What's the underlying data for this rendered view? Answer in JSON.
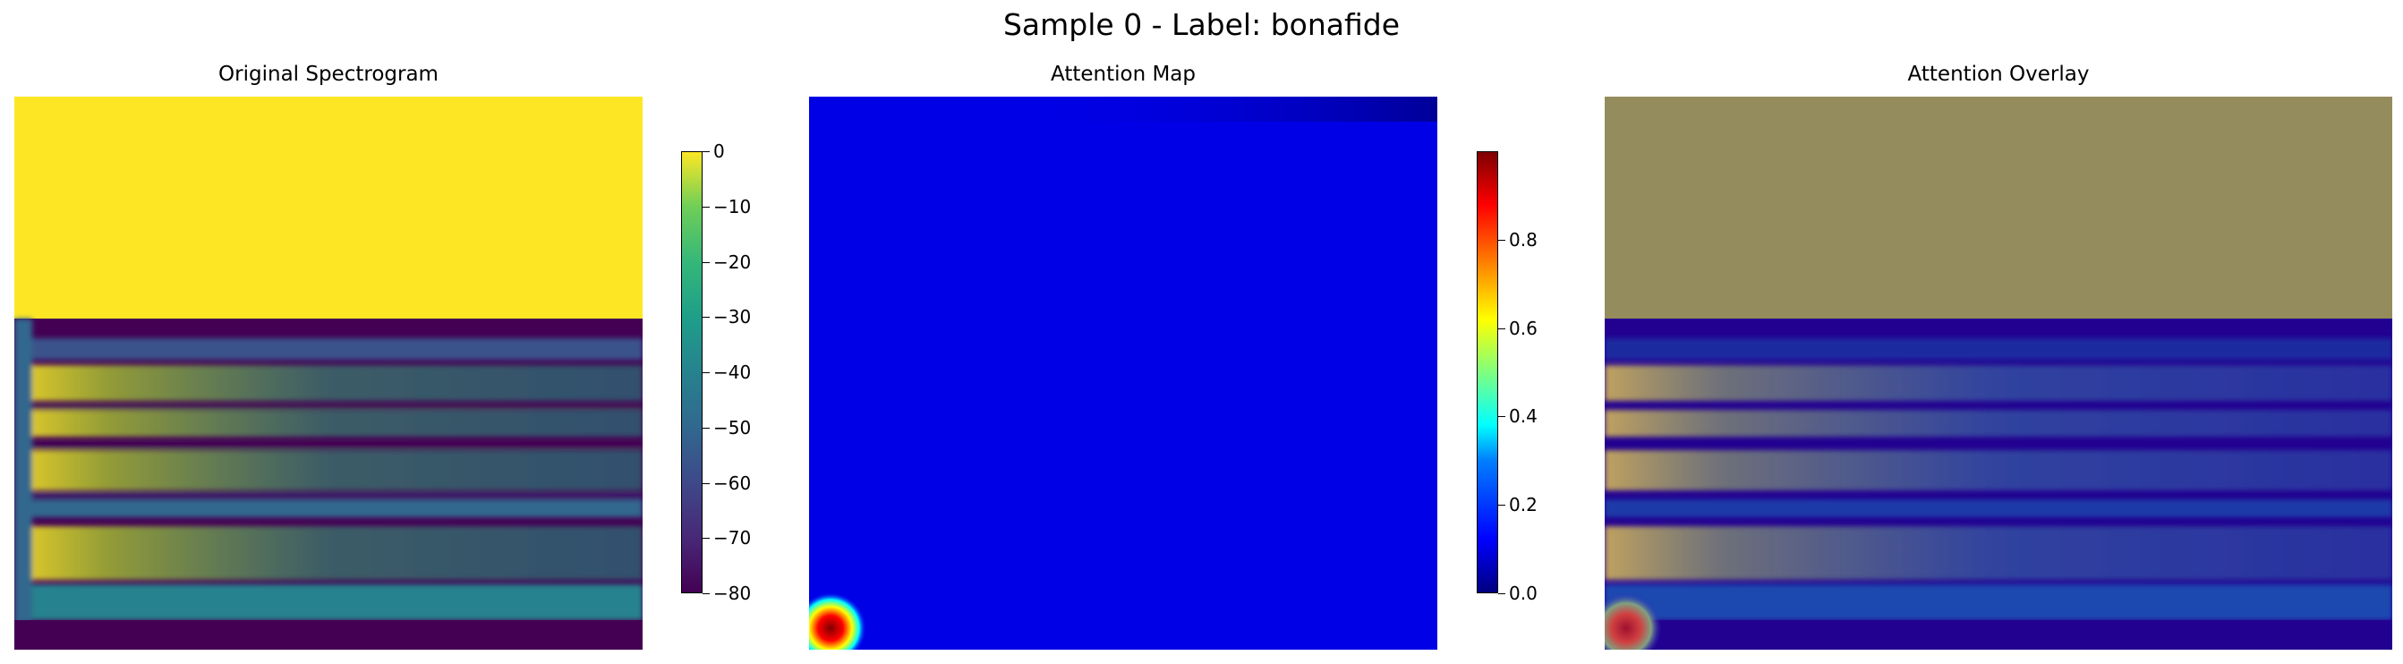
{
  "chart_data": {
    "title": "Sample 0 - Label: bonafide",
    "panels": [
      {
        "type": "heatmap",
        "title": "Original Spectrogram",
        "colormap": "viridis",
        "colorbar": {
          "ticks": [
            0,
            -10,
            -20,
            -30,
            -40,
            -50,
            -60,
            -70,
            -80
          ],
          "range": [
            -80,
            0
          ]
        },
        "axes": "off"
      },
      {
        "type": "heatmap",
        "title": "Attention Map",
        "colormap": "jet",
        "colorbar": {
          "ticks": [
            0.0,
            0.2,
            0.4,
            0.6,
            0.8
          ],
          "range": [
            0,
            1
          ]
        },
        "axes": "off"
      },
      {
        "type": "heatmap",
        "title": "Attention Overlay",
        "colormap": "viridis + jet overlay",
        "axes": "off"
      }
    ]
  },
  "tick_labels": {
    "cbar1": [
      "0",
      "−10",
      "−20",
      "−30",
      "−40",
      "−50",
      "−60",
      "−70",
      "−80"
    ],
    "cbar2": [
      "0.0",
      "0.2",
      "0.4",
      "0.6",
      "0.8"
    ]
  }
}
